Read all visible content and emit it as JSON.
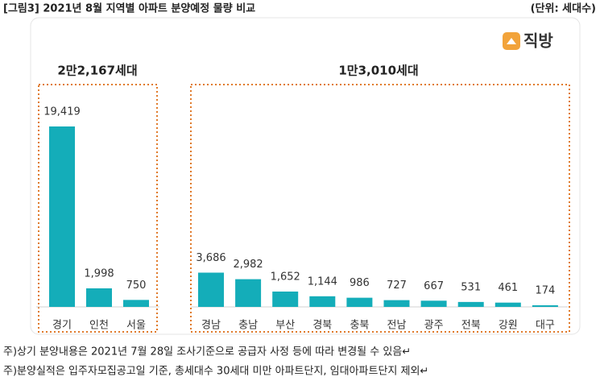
{
  "title": "[그림3] 2021년 8월 지역별 아파트 분양예정 물량 비교",
  "unit": "(단위: 세대수)",
  "chart_data": {
    "type": "bar",
    "logo": "직방",
    "categories": [
      "경기",
      "인천",
      "서울",
      "경남",
      "충남",
      "부산",
      "경북",
      "충북",
      "전남",
      "광주",
      "전북",
      "강원",
      "대구"
    ],
    "values": [
      19419,
      1998,
      750,
      3686,
      2982,
      1652,
      1144,
      986,
      727,
      667,
      531,
      461,
      174
    ],
    "value_labels": [
      "19,419",
      "1,998",
      "750",
      "3,686",
      "2,982",
      "1,652",
      "1,144",
      "986",
      "727",
      "667",
      "531",
      "461",
      "174"
    ],
    "color": "#14adb9",
    "groups": [
      "2만2,167세대",
      "1만3,010세대"
    ]
  },
  "notes": [
    "주)상기 분양내용은 2021년 7월 28일 조사기준으로 공급자 사정 등에 따라 변경될 수 있음↵",
    "주)분양실적은 입주자모집공고일 기준, 총세대수 30세대 미만 아파트단지, 임대아파트단지 제외↵"
  ]
}
